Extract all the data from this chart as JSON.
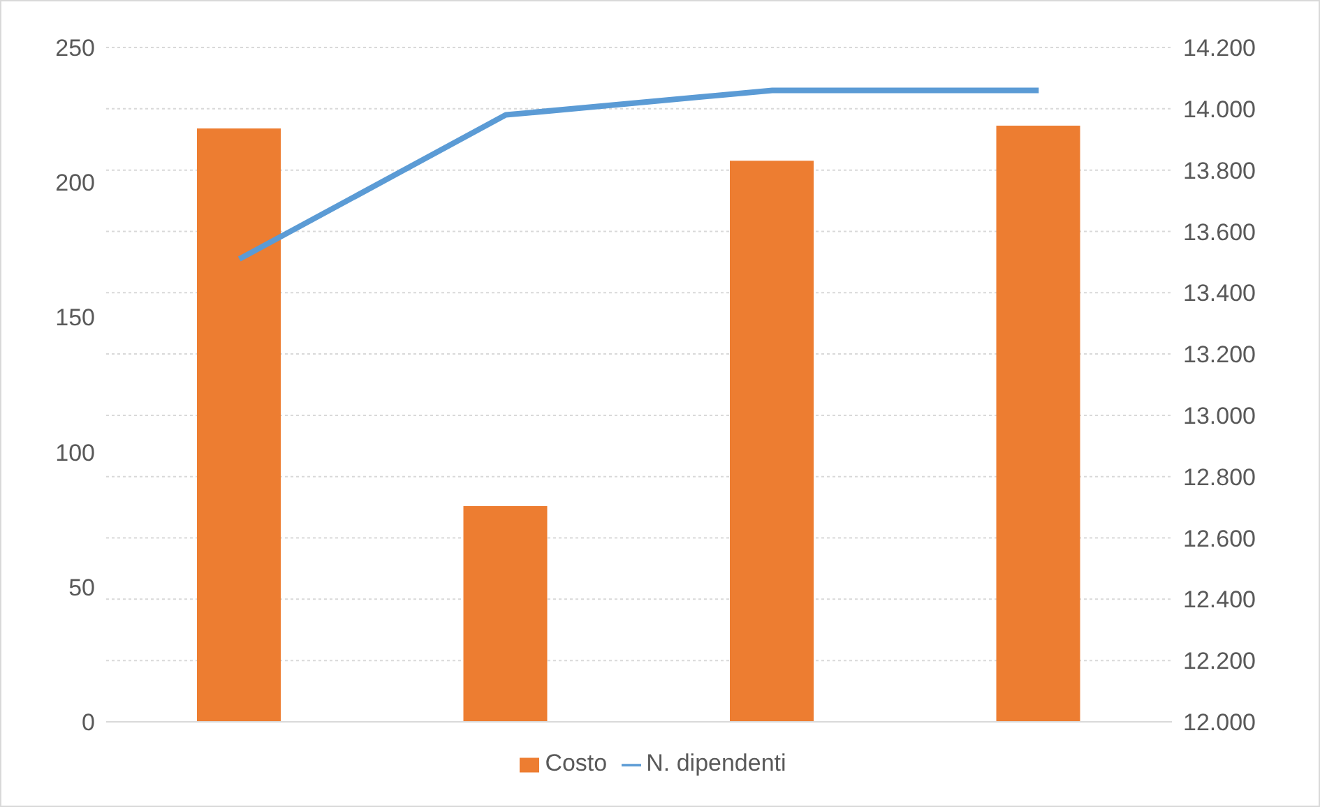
{
  "chart_data": {
    "type": "bar",
    "categories": [
      null,
      null,
      null,
      null
    ],
    "series": [
      {
        "name": "Costo",
        "color": "#ed7d31",
        "values": [
          220,
          80,
          208,
          221
        ]
      },
      {
        "name": "N. dipendenti",
        "type": "line",
        "axis": "y2",
        "color": "#5b9bd5",
        "values": [
          13510,
          13980,
          14060,
          14060
        ]
      }
    ],
    "ylim": [
      0,
      250
    ],
    "yticks": [
      0,
      50,
      100,
      150,
      200,
      250
    ],
    "y2lim": [
      12000,
      14200
    ],
    "y2ticks": [
      {
        "value": 12000,
        "label": "12.000"
      },
      {
        "value": 12200,
        "label": "12.200"
      },
      {
        "value": 12400,
        "label": "12.400"
      },
      {
        "value": 12600,
        "label": "12.600"
      },
      {
        "value": 12800,
        "label": "12.800"
      },
      {
        "value": 13000,
        "label": "13.000"
      },
      {
        "value": 13200,
        "label": "13.200"
      },
      {
        "value": 13400,
        "label": "13.400"
      },
      {
        "value": 13600,
        "label": "13.600"
      },
      {
        "value": 13800,
        "label": "13.800"
      },
      {
        "value": 14000,
        "label": "14.000"
      },
      {
        "value": 14200,
        "label": "14.200"
      }
    ],
    "grid": "y",
    "legend": "bottom",
    "marker": "none",
    "line_style": "solid"
  }
}
